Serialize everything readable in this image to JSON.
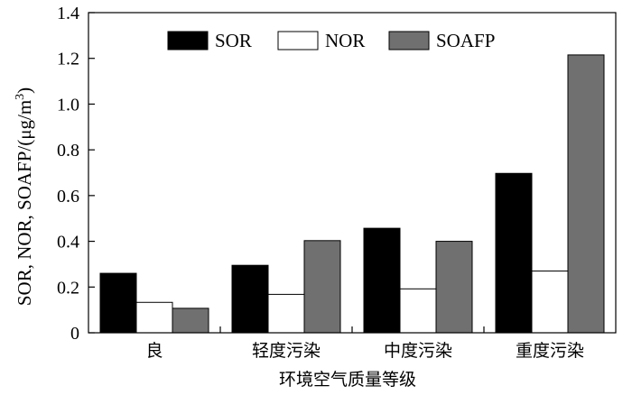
{
  "chart_data": {
    "type": "bar",
    "categories": [
      "良",
      "轻度污染",
      "中度污染",
      "重度污染"
    ],
    "series": [
      {
        "name": "SOR",
        "values": [
          0.26,
          0.295,
          0.457,
          0.697
        ],
        "color": "#000000"
      },
      {
        "name": "NOR",
        "values": [
          0.133,
          0.168,
          0.192,
          0.27
        ],
        "color": "#ffffff"
      },
      {
        "name": "SOAFP",
        "values": [
          0.107,
          0.403,
          0.4,
          1.215
        ],
        "color": "#707070"
      }
    ],
    "ylim": [
      0,
      1.4
    ],
    "yticks": [
      "0",
      "0.2",
      "0.4",
      "0.6",
      "0.8",
      "1.0",
      "1.2",
      "1.4"
    ],
    "xlabel": "环境空气质量等级",
    "ylabel": "SOR, NOR, SOAFP/(μg/m",
    "ylabel_superscript": "3",
    "ylabel_suffix": ")",
    "legend_position": "top-center",
    "grid": false
  }
}
